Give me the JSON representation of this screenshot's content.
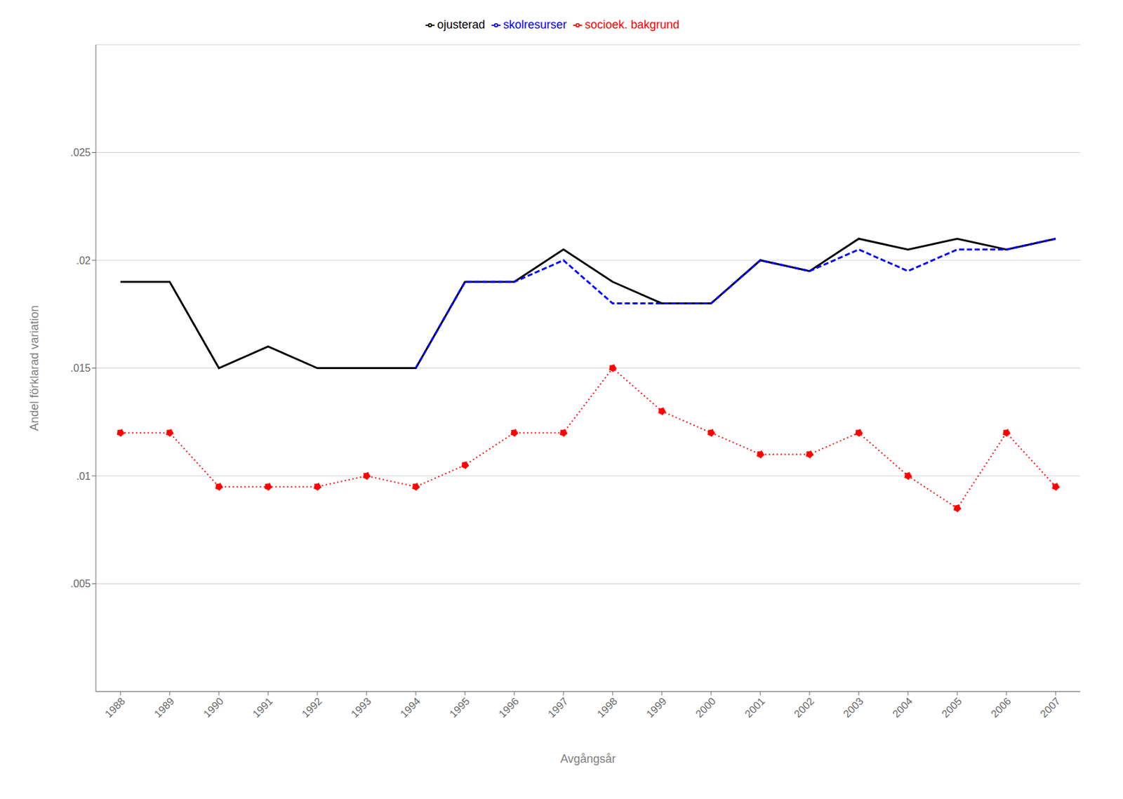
{
  "chart_data": {
    "type": "line",
    "x": [
      1988,
      1989,
      1990,
      1991,
      1992,
      1993,
      1994,
      1995,
      1996,
      1997,
      1998,
      1999,
      2000,
      2001,
      2002,
      2003,
      2004,
      2005,
      2006,
      2007
    ],
    "series": [
      {
        "name": "ojusterad",
        "color": "#000000",
        "line_style": "solid",
        "values": [
          0.019,
          0.019,
          0.015,
          0.016,
          0.015,
          0.015,
          0.015,
          0.019,
          0.019,
          0.0205,
          0.019,
          0.018,
          0.018,
          0.02,
          0.0195,
          0.021,
          0.0205,
          0.021,
          0.0205,
          0.021
        ]
      },
      {
        "name": "socioek. bakgrund",
        "color": "#ff0000",
        "line_style": "dotted",
        "marker": "circle",
        "values": [
          0.012,
          0.012,
          0.0095,
          0.0095,
          0.0095,
          0.01,
          0.0095,
          0.0105,
          0.012,
          0.012,
          0.015,
          0.013,
          0.012,
          0.011,
          0.011,
          0.012,
          0.01,
          0.0085,
          0.012,
          0.0095
        ]
      },
      {
        "name": "skolresurser",
        "color": "#0000ff",
        "line_style": "dashed",
        "values": [
          null,
          null,
          null,
          null,
          null,
          null,
          0.015,
          0.019,
          0.019,
          0.02,
          0.018,
          0.018,
          0.018,
          0.02,
          0.0195,
          0.0205,
          0.0195,
          0.0205,
          0.0205,
          0.021
        ]
      }
    ],
    "x_label": "Avgångsår",
    "y_label": "Andel förklarad variation",
    "xlim": [
      1987.5,
      2007.5
    ],
    "xticks": [
      1988,
      1989,
      1990,
      1991,
      1992,
      1993,
      1994,
      1995,
      1996,
      1997,
      1998,
      1999,
      2000,
      2001,
      2002,
      2003,
      2004,
      2005,
      2006,
      2007
    ],
    "ylim": [
      0,
      0.03
    ],
    "yticks": [
      {
        "value": 0.005,
        "label": ".005"
      },
      {
        "value": 0.01,
        "label": ".01"
      },
      {
        "value": 0.015,
        "label": ".015"
      },
      {
        "value": 0.02,
        "label": ".02"
      },
      {
        "value": 0.025,
        "label": ".025"
      }
    ],
    "grid": "y",
    "legend": "top"
  }
}
